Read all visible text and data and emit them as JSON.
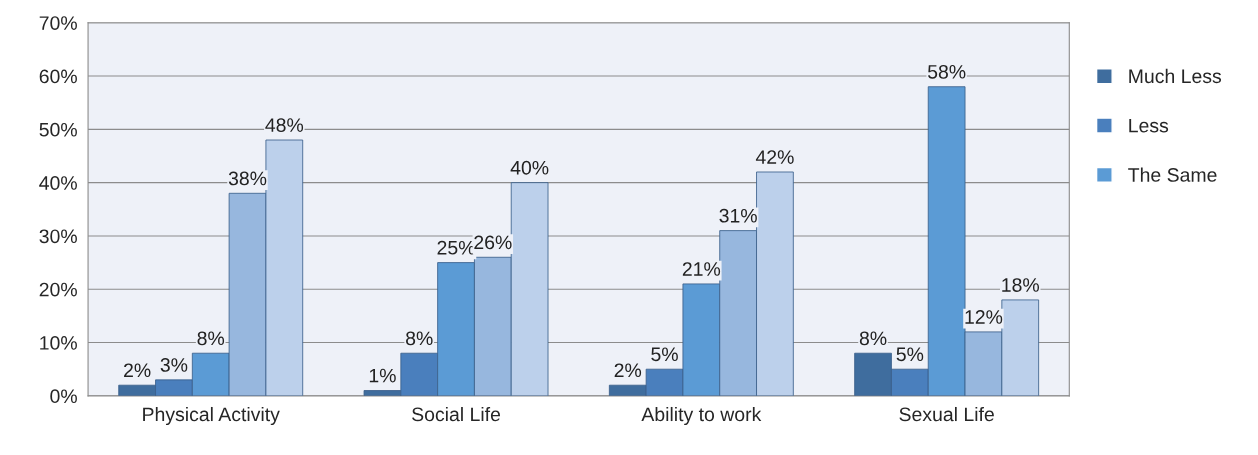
{
  "chart_data": {
    "type": "bar",
    "categories": [
      "Physical Activity",
      "Social Life",
      "Ability to work",
      "Sexual Life"
    ],
    "series": [
      {
        "name": "Much Less",
        "color": "#3f6d9e",
        "values": [
          2,
          1,
          2,
          8
        ]
      },
      {
        "name": "Less",
        "color": "#4a7fbd",
        "values": [
          3,
          8,
          5,
          5
        ]
      },
      {
        "name": "The Same",
        "color": "#5b9bd5",
        "values": [
          8,
          25,
          21,
          58
        ]
      },
      {
        "color": "#97b7de",
        "values": [
          38,
          26,
          31,
          12
        ]
      },
      {
        "color": "#bcd0eb",
        "values": [
          48,
          40,
          42,
          18
        ]
      }
    ],
    "ylim": [
      0,
      70
    ],
    "yticks": [
      {
        "value": 0,
        "label": "0%"
      },
      {
        "value": 10,
        "label": "10%"
      },
      {
        "value": 20,
        "label": "20%"
      },
      {
        "value": 30,
        "label": "30%"
      },
      {
        "value": 40,
        "label": "40%"
      },
      {
        "value": 50,
        "label": "50%"
      },
      {
        "value": 60,
        "label": "60%"
      },
      {
        "value": 70,
        "label": "70%"
      }
    ],
    "value_labels": [
      [
        "2%",
        "1%",
        "2%",
        "8%"
      ],
      [
        "3%",
        "8%",
        "5%",
        "5%"
      ],
      [
        "8%",
        "25%",
        "21%",
        "58%"
      ],
      [
        "38%",
        "26%",
        "31%",
        "12%"
      ],
      [
        "48%",
        "40%",
        "42%",
        "18%"
      ]
    ],
    "grid": "y",
    "legend": "right"
  }
}
